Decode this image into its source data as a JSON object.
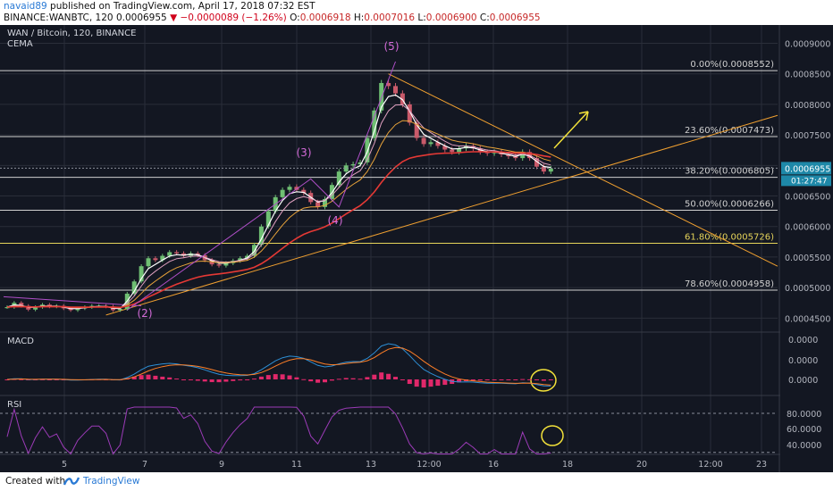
{
  "header": {
    "user": "navaid89",
    "published_text": "published on TradingView.com, April 17, 2018 07:32 EST",
    "symbol_line": "BINANCE:WANBTC, 120",
    "last": "0.0006955",
    "change": "−0.0000089 (−1.26%)",
    "o_label": "O:",
    "o_value": "0.0006918",
    "h_label": "H:",
    "h_value": "0.0007016",
    "l_label": "L:",
    "l_value": "0.0006900",
    "c_label": "C:",
    "c_value": "0.0006955"
  },
  "footer": {
    "created_with": "Created with",
    "brand": "TradingView"
  },
  "chart_data": {
    "type": "line",
    "title": "WAN / Bitcoin, 120, BINANCE",
    "indicator_label": "CEMA",
    "price_axis_labels": [
      "0.0009000",
      "0.0008500",
      "0.0008000",
      "0.0007500",
      "0.0007000",
      "0.0006500",
      "0.0006000",
      "0.0005500",
      "0.0005000",
      "0.0004500"
    ],
    "price_range": [
      0.00043,
      0.00093
    ],
    "current_price_label": "0.0006955",
    "countdown_label": "01:27:47",
    "x_tick_labels": [
      "5",
      "7",
      "9",
      "11",
      "13",
      "12:00",
      "16",
      "18",
      "20",
      "12:00",
      "23"
    ],
    "fibonacci_levels": [
      {
        "label": "0.00%(0.0008552)",
        "value": 0.0008552
      },
      {
        "label": "23.60%(0.0007473)",
        "value": 0.0007473
      },
      {
        "label": "38.20%(0.0006805)",
        "value": 0.0006805
      },
      {
        "label": "50.00%(0.0006266)",
        "value": 0.0006266
      },
      {
        "label": "61.80%(0.0005726)",
        "value": 0.0005726,
        "highlight": true
      },
      {
        "label": "78.60%(0.0004958)",
        "value": 0.0004958
      }
    ],
    "wave_labels": [
      "(2)",
      "(3)",
      "(4)",
      "(5)"
    ],
    "price_series": [
      {
        "t": 0,
        "v": 0.000468
      },
      {
        "t": 1,
        "v": 0.000475
      },
      {
        "t": 2,
        "v": 0.00047
      },
      {
        "t": 3,
        "v": 0.000464
      },
      {
        "t": 4,
        "v": 0.000468
      },
      {
        "t": 5,
        "v": 0.000472
      },
      {
        "t": 6,
        "v": 0.000469
      },
      {
        "t": 7,
        "v": 0.00047
      },
      {
        "t": 8,
        "v": 0.000466
      },
      {
        "t": 9,
        "v": 0.000463
      },
      {
        "t": 10,
        "v": 0.000466
      },
      {
        "t": 11,
        "v": 0.000468
      },
      {
        "t": 12,
        "v": 0.00047
      },
      {
        "t": 13,
        "v": 0.00047
      },
      {
        "t": 14,
        "v": 0.000469
      },
      {
        "t": 15,
        "v": 0.000463
      },
      {
        "t": 16,
        "v": 0.000465
      },
      {
        "t": 17,
        "v": 0.00049
      },
      {
        "t": 18,
        "v": 0.00051
      },
      {
        "t": 19,
        "v": 0.000535
      },
      {
        "t": 20,
        "v": 0.000548
      },
      {
        "t": 21,
        "v": 0.000545
      },
      {
        "t": 22,
        "v": 0.000552
      },
      {
        "t": 23,
        "v": 0.000558
      },
      {
        "t": 24,
        "v": 0.000556
      },
      {
        "t": 25,
        "v": 0.000552
      },
      {
        "t": 26,
        "v": 0.000556
      },
      {
        "t": 27,
        "v": 0.000553
      },
      {
        "t": 28,
        "v": 0.000545
      },
      {
        "t": 29,
        "v": 0.000538
      },
      {
        "t": 30,
        "v": 0.000536
      },
      {
        "t": 31,
        "v": 0.00054
      },
      {
        "t": 32,
        "v": 0.000544
      },
      {
        "t": 33,
        "v": 0.000548
      },
      {
        "t": 34,
        "v": 0.000552
      },
      {
        "t": 35,
        "v": 0.00057
      },
      {
        "t": 36,
        "v": 0.0006
      },
      {
        "t": 37,
        "v": 0.000625
      },
      {
        "t": 38,
        "v": 0.000648
      },
      {
        "t": 39,
        "v": 0.00066
      },
      {
        "t": 40,
        "v": 0.000665
      },
      {
        "t": 41,
        "v": 0.00066
      },
      {
        "t": 42,
        "v": 0.000655
      },
      {
        "t": 43,
        "v": 0.00064
      },
      {
        "t": 44,
        "v": 0.000632
      },
      {
        "t": 45,
        "v": 0.000645
      },
      {
        "t": 46,
        "v": 0.000668
      },
      {
        "t": 47,
        "v": 0.00069
      },
      {
        "t": 48,
        "v": 0.0007
      },
      {
        "t": 49,
        "v": 0.000702
      },
      {
        "t": 50,
        "v": 0.000705
      },
      {
        "t": 51,
        "v": 0.000745
      },
      {
        "t": 52,
        "v": 0.00079
      },
      {
        "t": 53,
        "v": 0.000835
      },
      {
        "t": 54,
        "v": 0.00083
      },
      {
        "t": 55,
        "v": 0.000818
      },
      {
        "t": 56,
        "v": 0.0008
      },
      {
        "t": 57,
        "v": 0.00077
      },
      {
        "t": 58,
        "v": 0.000745
      },
      {
        "t": 59,
        "v": 0.000735
      },
      {
        "t": 60,
        "v": 0.000738
      },
      {
        "t": 61,
        "v": 0.000732
      },
      {
        "t": 62,
        "v": 0.000726
      },
      {
        "t": 63,
        "v": 0.000722
      },
      {
        "t": 64,
        "v": 0.000728
      },
      {
        "t": 65,
        "v": 0.000732
      },
      {
        "t": 66,
        "v": 0.000728
      },
      {
        "t": 67,
        "v": 0.000722
      },
      {
        "t": 68,
        "v": 0.00072
      },
      {
        "t": 69,
        "v": 0.000722
      },
      {
        "t": 70,
        "v": 0.000718
      },
      {
        "t": 71,
        "v": 0.000715
      },
      {
        "t": 72,
        "v": 0.000712
      },
      {
        "t": 73,
        "v": 0.000722
      },
      {
        "t": 74,
        "v": 0.000712
      },
      {
        "t": 75,
        "v": 0.000698
      },
      {
        "t": 76,
        "v": 0.00069
      },
      {
        "t": 77,
        "v": 0.000695
      }
    ],
    "macd": {
      "label": "MACD",
      "axis_labels": [
        "0.0000",
        "0.0000",
        "0.0000"
      ]
    },
    "rsi": {
      "label": "RSI",
      "axis_labels": [
        "80.0000",
        "60.0000",
        "40.0000"
      ]
    },
    "colors": {
      "background": "#131722",
      "grid": "#2a2e39",
      "candle_up": "#6fbf73",
      "candle_down": "#c95a6a",
      "ema_fast": "#ffffff",
      "ema_mid": "#e0a0c0",
      "ema_slow": "#e8a33a",
      "ema_long": "#e53935",
      "trendline": "#f0a030",
      "wave": "#b04fc8",
      "arrow": "#f3e23a",
      "macd": "#2d8fd5",
      "signal": "#ff7f27",
      "histogram": "#e0286a",
      "rsi": "#9c3bb8",
      "fib_line": "#d0d0d0",
      "fib_highlight": "#e6d45a"
    }
  }
}
